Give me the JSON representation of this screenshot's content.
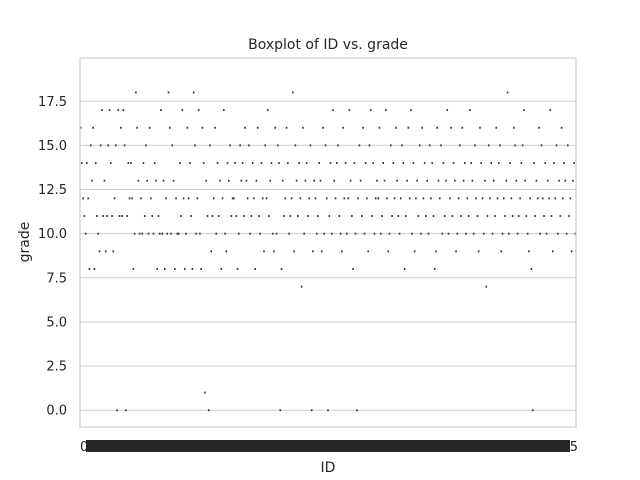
{
  "chart_data": {
    "type": "box",
    "title": "Boxplot of ID vs. grade",
    "xlabel": "ID",
    "ylabel": "grade",
    "ylim": [
      -0.95,
      19.95
    ],
    "yticks": [
      0.0,
      2.5,
      5.0,
      7.5,
      10.0,
      12.5,
      15.0,
      17.5
    ],
    "ytick_labels": [
      "0.0",
      "2.5",
      "5.0",
      "7.5",
      "10.0",
      "12.5",
      "15.0",
      "17.5"
    ],
    "grid": "horizontal",
    "x_category_count": 395,
    "x_ticks_overlapping": true,
    "x_tick_label_first": "0",
    "x_tick_label_last": "5",
    "values": [
      16,
      14,
      12,
      11,
      10,
      14,
      12,
      8,
      15,
      13,
      16,
      8,
      14,
      11,
      10,
      9,
      15,
      17,
      11,
      13,
      9,
      11,
      15,
      17,
      14,
      11,
      9,
      12,
      15,
      0,
      17,
      11,
      16,
      11,
      17,
      15,
      0,
      11,
      14,
      12,
      14,
      12,
      8,
      10,
      18,
      16,
      13,
      10,
      12,
      10,
      14,
      11,
      15,
      13,
      10,
      16,
      12,
      11,
      10,
      14,
      13,
      8,
      11,
      10,
      17,
      10,
      13,
      8,
      12,
      10,
      18,
      16,
      10,
      15,
      13,
      8,
      12,
      10,
      10,
      14,
      11,
      17,
      12,
      8,
      10,
      16,
      12,
      14,
      11,
      8,
      18,
      15,
      10,
      12,
      17,
      10,
      8,
      16,
      14,
      1,
      13,
      11,
      0,
      15,
      9,
      11,
      12,
      16,
      10,
      14,
      11,
      13,
      8,
      12,
      17,
      10,
      9,
      14,
      13,
      15,
      11,
      12,
      12,
      14,
      11,
      8,
      10,
      15,
      13,
      14,
      11,
      16,
      13,
      12,
      15,
      10,
      11,
      14,
      12,
      8,
      13,
      16,
      11,
      10,
      14,
      12,
      9,
      15,
      12,
      17,
      11,
      13,
      14,
      10,
      9,
      16,
      10,
      15,
      14,
      0,
      8,
      13,
      11,
      12,
      16,
      14,
      10,
      11,
      12,
      18,
      9,
      15,
      13,
      11,
      14,
      12,
      7,
      16,
      10,
      13,
      14,
      11,
      12,
      15,
      0,
      9,
      13,
      12,
      10,
      11,
      14,
      13,
      9,
      16,
      10,
      15,
      12,
      0,
      11,
      14,
      10,
      17,
      13,
      12,
      14,
      15,
      11,
      10,
      9,
      16,
      12,
      14,
      10,
      12,
      17,
      13,
      11,
      8,
      14,
      10,
      0,
      12,
      15,
      13,
      11,
      16,
      10,
      14,
      12,
      9,
      15,
      17,
      11,
      14,
      10,
      12,
      13,
      12,
      16,
      10,
      11,
      14,
      13,
      17,
      12,
      9,
      10,
      15,
      11,
      14,
      12,
      16,
      13,
      11,
      10,
      12,
      15,
      14,
      8,
      11,
      13,
      16,
      12,
      17,
      10,
      14,
      9,
      12,
      13,
      11,
      15,
      10,
      16,
      12,
      14,
      11,
      13,
      10,
      15,
      12,
      14,
      11,
      8,
      9,
      16,
      13,
      12,
      15,
      10,
      14,
      11,
      13,
      17,
      10,
      12,
      16,
      11,
      14,
      13,
      9,
      10,
      12,
      15,
      11,
      16,
      13,
      14,
      10,
      12,
      11,
      17,
      14,
      13,
      10,
      15,
      12,
      11,
      9,
      16,
      14,
      12,
      10,
      13,
      7,
      11,
      15,
      12,
      14,
      10,
      13,
      11,
      16,
      12,
      14,
      15,
      9,
      10,
      12,
      11,
      13,
      18,
      10,
      14,
      12,
      11,
      16,
      15,
      13,
      10,
      11,
      12,
      14,
      15,
      17,
      13,
      11,
      10,
      9,
      12,
      8,
      0,
      14,
      11,
      13,
      12,
      16,
      10,
      15,
      12,
      11,
      14,
      10,
      13,
      12,
      17,
      11,
      9,
      14,
      12,
      15,
      10,
      13,
      11,
      16,
      12,
      14,
      13,
      10,
      15,
      11,
      12,
      9,
      13,
      14,
      10
    ]
  }
}
